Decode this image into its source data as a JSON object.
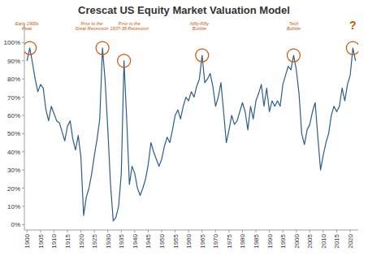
{
  "chart_data": {
    "type": "line",
    "title": "Crescat US Equity Market Valuation Model",
    "x": [
      1900,
      1901,
      1902,
      1903,
      1904,
      1905,
      1906,
      1907,
      1908,
      1909,
      1910,
      1911,
      1912,
      1913,
      1914,
      1915,
      1916,
      1917,
      1918,
      1919,
      1920,
      1921,
      1922,
      1923,
      1924,
      1925,
      1926,
      1927,
      1928,
      1929,
      1930,
      1931,
      1932,
      1933,
      1934,
      1935,
      1936,
      1937,
      1938,
      1939,
      1940,
      1941,
      1942,
      1943,
      1944,
      1945,
      1946,
      1947,
      1948,
      1949,
      1950,
      1951,
      1952,
      1953,
      1954,
      1955,
      1956,
      1957,
      1958,
      1959,
      1960,
      1961,
      1962,
      1963,
      1964,
      1965,
      1966,
      1967,
      1968,
      1969,
      1970,
      1971,
      1972,
      1973,
      1974,
      1975,
      1976,
      1977,
      1978,
      1979,
      1980,
      1981,
      1982,
      1983,
      1984,
      1985,
      1986,
      1987,
      1988,
      1989,
      1990,
      1991,
      1992,
      1993,
      1994,
      1995,
      1996,
      1997,
      1998,
      1999,
      2000,
      2001,
      2002,
      2003,
      2004,
      2005,
      2006,
      2007,
      2008,
      2009,
      2010,
      2011,
      2012,
      2013,
      2014,
      2015,
      2016,
      2017,
      2018,
      2019,
      2020,
      2021,
      2022
    ],
    "values": [
      90,
      97,
      89,
      80,
      73,
      77,
      75,
      63,
      57,
      65,
      61,
      57,
      56,
      51,
      46,
      54,
      57,
      47,
      41,
      49,
      37,
      5,
      15,
      20,
      28,
      38,
      47,
      58,
      97,
      79,
      52,
      22,
      2,
      4,
      10,
      28,
      90,
      58,
      22,
      32,
      28,
      20,
      16,
      20,
      25,
      33,
      45,
      40,
      36,
      32,
      36,
      43,
      48,
      45,
      52,
      60,
      63,
      58,
      65,
      70,
      68,
      73,
      70,
      76,
      80,
      93,
      78,
      80,
      83,
      76,
      65,
      70,
      78,
      62,
      45,
      52,
      60,
      55,
      57,
      62,
      67,
      62,
      52,
      65,
      58,
      68,
      72,
      77,
      65,
      75,
      62,
      68,
      65,
      68,
      65,
      77,
      82,
      87,
      85,
      93,
      85,
      72,
      50,
      44,
      52,
      55,
      62,
      67,
      48,
      30,
      38,
      45,
      50,
      60,
      65,
      62,
      65,
      75,
      68,
      77,
      82,
      97,
      90
    ],
    "xlim": [
      1899,
      2023
    ],
    "ylim": [
      -3,
      110
    ],
    "xticks": [
      1900,
      1905,
      1910,
      1915,
      1920,
      1925,
      1930,
      1935,
      1940,
      1945,
      1950,
      1955,
      1960,
      1965,
      1970,
      1975,
      1980,
      1985,
      1990,
      1995,
      2000,
      2005,
      2010,
      2015,
      2020
    ],
    "yticks": [
      {
        "value": 0,
        "label": "0%"
      },
      {
        "value": 10,
        "label": "10%"
      },
      {
        "value": 20,
        "label": "20%"
      },
      {
        "value": 30,
        "label": "30%"
      },
      {
        "value": 40,
        "label": "40%"
      },
      {
        "value": 50,
        "label": "50%"
      },
      {
        "value": 60,
        "label": "60%"
      },
      {
        "value": 70,
        "label": "70%"
      },
      {
        "value": 80,
        "label": "80%"
      },
      {
        "value": 90,
        "label": "90%"
      },
      {
        "value": 100,
        "label": "100%"
      }
    ],
    "grid": false,
    "annotations": [
      {
        "text": "Early 1900s\nPeak",
        "x": 1901,
        "y": 97,
        "text_x": 1900,
        "text_y": 106
      },
      {
        "text": "Prior to the\nGreat Recession",
        "x": 1928,
        "y": 97,
        "text_x": 1924,
        "text_y": 106
      },
      {
        "text": "Prior to the\n1937-38 Recession",
        "x": 1936,
        "y": 90,
        "text_x": 1938,
        "text_y": 106
      },
      {
        "text": "Nifty-Fifty\nBubble",
        "x": 1965,
        "y": 93,
        "text_x": 1964,
        "text_y": 106
      },
      {
        "text": "Tech\nBubble",
        "x": 1999,
        "y": 93,
        "text_x": 1999,
        "text_y": 106
      },
      {
        "text": "?",
        "x": 2021,
        "y": 97,
        "text_x": 2021,
        "text_y": 107
      }
    ]
  }
}
